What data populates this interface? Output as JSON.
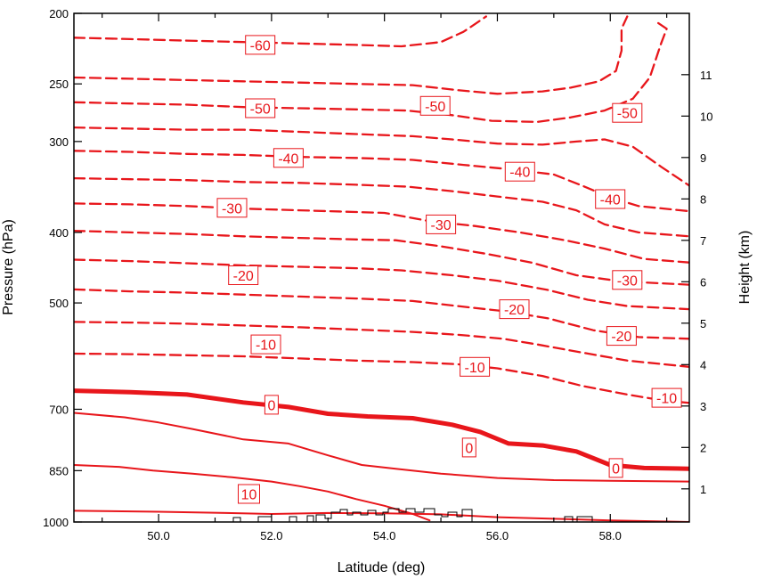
{
  "chart_data": {
    "type": "contour",
    "colors": {
      "contour": "#e8161b",
      "terrain": "#000000",
      "frame": "#000000"
    },
    "x_axis": {
      "label": "Latitude (deg)",
      "range": [
        48.5,
        59.4
      ],
      "ticks": [
        50.0,
        52.0,
        54.0,
        56.0,
        58.0
      ],
      "tick_labels": [
        "50.0",
        "52.0",
        "54.0",
        "56.0",
        "58.0"
      ]
    },
    "y_axis_left": {
      "label": "Pressure (hPa)",
      "scale": "log",
      "range": [
        1000,
        200
      ],
      "ticks": [
        200,
        250,
        300,
        400,
        500,
        700,
        850,
        1000
      ],
      "tick_labels": [
        "200",
        "250",
        "300",
        "400",
        "500",
        "700",
        "850",
        "1000"
      ]
    },
    "y_axis_right": {
      "label": "Height (km)",
      "ticks": [
        1,
        2,
        3,
        4,
        5,
        6,
        7,
        8,
        9,
        10,
        11
      ],
      "tick_labels": [
        "1",
        "2",
        "3",
        "4",
        "5",
        "6",
        "7",
        "8",
        "9",
        "10",
        "11"
      ]
    },
    "contours": [
      {
        "level": 10,
        "style": "solid",
        "points": [
          [
            48.5,
            835
          ],
          [
            49.3,
            840
          ],
          [
            49.9,
            850
          ],
          [
            50.6,
            858
          ],
          [
            51.3,
            868
          ],
          [
            52.0,
            880
          ],
          [
            52.5,
            893
          ],
          [
            53.0,
            908
          ],
          [
            53.5,
            930
          ],
          [
            54.0,
            950
          ],
          [
            54.5,
            975
          ],
          [
            54.8,
            995
          ]
        ]
      },
      {
        "level": 5,
        "style": "solid",
        "points": [
          [
            48.5,
            708
          ],
          [
            49.4,
            718
          ],
          [
            50.0,
            730
          ],
          [
            50.6,
            745
          ],
          [
            51.5,
            770
          ],
          [
            52.3,
            780
          ],
          [
            53.0,
            810
          ],
          [
            53.6,
            835
          ],
          [
            54.2,
            845
          ],
          [
            55.0,
            858
          ],
          [
            56.0,
            870
          ],
          [
            57.0,
            876
          ],
          [
            58.0,
            878
          ],
          [
            59.4,
            880
          ]
        ]
      },
      {
        "level": 3,
        "style": "solid",
        "points": [
          [
            48.5,
            965
          ],
          [
            50.0,
            968
          ],
          [
            51.2,
            972
          ],
          [
            52.0,
            975
          ],
          [
            53.0,
            972
          ],
          [
            54.0,
            973
          ],
          [
            55.0,
            976
          ],
          [
            56.0,
            985
          ],
          [
            57.0,
            990
          ],
          [
            58.0,
            995
          ],
          [
            59.4,
            1000
          ]
        ]
      },
      {
        "level": 0,
        "style": "bold",
        "points": [
          [
            48.5,
            660
          ],
          [
            49.5,
            663
          ],
          [
            50.5,
            668
          ],
          [
            51.5,
            685
          ],
          [
            52.3,
            695
          ],
          [
            53.0,
            710
          ],
          [
            53.7,
            716
          ],
          [
            54.5,
            720
          ],
          [
            55.2,
            735
          ],
          [
            55.7,
            752
          ],
          [
            56.2,
            780
          ],
          [
            56.8,
            785
          ],
          [
            57.4,
            800
          ],
          [
            58.0,
            835
          ],
          [
            58.6,
            843
          ],
          [
            59.4,
            845
          ]
        ]
      },
      {
        "level": -5,
        "style": "dashed",
        "points": [
          [
            48.5,
            587
          ],
          [
            49.5,
            588
          ],
          [
            50.5,
            590
          ],
          [
            51.5,
            592
          ],
          [
            52.5,
            596
          ],
          [
            53.5,
            600
          ],
          [
            54.5,
            603
          ],
          [
            55.3,
            607
          ],
          [
            56.0,
            615
          ],
          [
            56.8,
            630
          ],
          [
            57.5,
            650
          ],
          [
            58.3,
            668
          ],
          [
            58.9,
            680
          ],
          [
            59.4,
            686
          ]
        ]
      },
      {
        "level": -10,
        "style": "dashed",
        "points": [
          [
            48.5,
            531
          ],
          [
            49.5,
            532
          ],
          [
            50.5,
            534
          ],
          [
            51.5,
            537
          ],
          [
            52.5,
            540
          ],
          [
            53.5,
            544
          ],
          [
            54.5,
            548
          ],
          [
            55.3,
            553
          ],
          [
            56.1,
            560
          ],
          [
            56.7,
            570
          ],
          [
            57.5,
            585
          ],
          [
            58.3,
            600
          ],
          [
            59.4,
            612
          ]
        ]
      },
      {
        "level": -15,
        "style": "dashed",
        "points": [
          [
            48.5,
            479
          ],
          [
            49.5,
            482
          ],
          [
            50.5,
            484
          ],
          [
            51.5,
            487
          ],
          [
            52.5,
            490
          ],
          [
            53.5,
            493
          ],
          [
            54.5,
            497
          ],
          [
            55.3,
            505
          ],
          [
            56.1,
            513
          ],
          [
            56.9,
            525
          ],
          [
            57.7,
            545
          ],
          [
            58.5,
            557
          ],
          [
            59.4,
            560
          ]
        ]
      },
      {
        "level": -20,
        "style": "dashed",
        "points": [
          [
            48.5,
            436
          ],
          [
            49.5,
            438
          ],
          [
            50.5,
            441
          ],
          [
            51.5,
            444
          ],
          [
            52.5,
            446
          ],
          [
            53.5,
            448
          ],
          [
            54.3,
            451
          ],
          [
            55.2,
            458
          ],
          [
            56.0,
            466
          ],
          [
            56.9,
            480
          ],
          [
            57.6,
            495
          ],
          [
            58.3,
            505
          ],
          [
            59.4,
            510
          ]
        ]
      },
      {
        "level": -25,
        "style": "dashed",
        "points": [
          [
            48.5,
            398
          ],
          [
            49.5,
            400
          ],
          [
            50.5,
            402
          ],
          [
            51.5,
            405
          ],
          [
            52.5,
            407
          ],
          [
            53.5,
            409
          ],
          [
            54.2,
            410
          ],
          [
            55.0,
            418
          ],
          [
            55.8,
            428
          ],
          [
            56.6,
            440
          ],
          [
            57.4,
            458
          ],
          [
            58.2,
            467
          ],
          [
            59.4,
            472
          ]
        ]
      },
      {
        "level": -30,
        "style": "dashed",
        "points": [
          [
            48.5,
            365
          ],
          [
            49.5,
            366
          ],
          [
            50.5,
            368
          ],
          [
            51.5,
            371
          ],
          [
            52.5,
            373
          ],
          [
            53.5,
            375
          ],
          [
            54.0,
            376
          ],
          [
            54.8,
            386
          ],
          [
            55.6,
            392
          ],
          [
            56.4,
            400
          ],
          [
            57.2,
            410
          ],
          [
            57.9,
            421
          ],
          [
            58.6,
            435
          ],
          [
            59.4,
            440
          ]
        ]
      },
      {
        "level": -35,
        "style": "dashed",
        "points": [
          [
            48.5,
            337
          ],
          [
            49.5,
            338
          ],
          [
            50.5,
            339
          ],
          [
            51.5,
            341
          ],
          [
            52.5,
            342
          ],
          [
            53.5,
            344
          ],
          [
            54.4,
            346
          ],
          [
            55.2,
            351
          ],
          [
            56.0,
            357
          ],
          [
            56.8,
            363
          ],
          [
            57.4,
            373
          ],
          [
            57.9,
            390
          ],
          [
            58.5,
            400
          ],
          [
            59.4,
            405
          ]
        ]
      },
      {
        "level": -40,
        "style": "dashed",
        "points": [
          [
            48.5,
            309
          ],
          [
            49.5,
            310
          ],
          [
            50.5,
            312
          ],
          [
            51.5,
            313
          ],
          [
            52.5,
            315
          ],
          [
            53.5,
            316
          ],
          [
            54.5,
            318
          ],
          [
            55.4,
            323
          ],
          [
            56.3,
            328
          ],
          [
            57.0,
            333
          ],
          [
            57.5,
            345
          ],
          [
            58.0,
            358
          ],
          [
            58.5,
            368
          ],
          [
            59.4,
            374
          ]
        ]
      },
      {
        "level": -45,
        "style": "dashed",
        "points": [
          [
            48.5,
            287
          ],
          [
            49.5,
            288
          ],
          [
            50.5,
            289
          ],
          [
            51.5,
            289
          ],
          [
            52.5,
            291
          ],
          [
            53.5,
            293
          ],
          [
            54.5,
            295
          ],
          [
            55.2,
            298
          ],
          [
            56.0,
            302
          ],
          [
            56.8,
            303
          ],
          [
            57.4,
            300
          ],
          [
            57.9,
            298
          ],
          [
            58.4,
            305
          ],
          [
            58.9,
            325
          ],
          [
            59.4,
            345
          ]
        ]
      },
      {
        "level": -50,
        "style": "dashed",
        "points": [
          [
            48.5,
            265
          ],
          [
            49.5,
            266
          ],
          [
            50.5,
            267
          ],
          [
            51.5,
            269
          ],
          [
            52.5,
            270
          ],
          [
            53.5,
            271
          ],
          [
            54.4,
            272
          ],
          [
            55.2,
            276
          ],
          [
            55.9,
            281
          ],
          [
            56.7,
            282
          ],
          [
            57.3,
            278
          ],
          [
            57.9,
            272
          ],
          [
            58.4,
            262
          ],
          [
            58.7,
            245
          ],
          [
            58.9,
            220
          ],
          [
            59.0,
            210
          ],
          [
            58.8,
            205
          ]
        ]
      },
      {
        "level": -55,
        "style": "dashed",
        "points": [
          [
            48.5,
            245
          ],
          [
            49.5,
            246
          ],
          [
            50.5,
            247
          ],
          [
            51.5,
            248
          ],
          [
            52.5,
            249
          ],
          [
            53.5,
            250
          ],
          [
            54.5,
            251
          ],
          [
            55.3,
            255
          ],
          [
            56.0,
            258
          ],
          [
            56.8,
            256
          ],
          [
            57.3,
            253
          ],
          [
            57.8,
            248
          ],
          [
            58.1,
            240
          ],
          [
            58.2,
            225
          ],
          [
            58.2,
            210
          ],
          [
            58.3,
            202
          ]
        ]
      },
      {
        "level": -60,
        "style": "dashed",
        "points": [
          [
            48.5,
            216
          ],
          [
            49.5,
            217
          ],
          [
            50.5,
            218
          ],
          [
            51.5,
            219
          ],
          [
            52.5,
            220
          ],
          [
            53.5,
            221
          ],
          [
            54.3,
            222
          ],
          [
            55.0,
            219
          ],
          [
            55.4,
            212
          ],
          [
            55.6,
            207
          ],
          [
            55.8,
            202
          ]
        ]
      }
    ],
    "contour_labels": [
      {
        "text": "-60",
        "lat": 51.8,
        "p": 221
      },
      {
        "text": "-50",
        "lat": 51.8,
        "p": 270
      },
      {
        "text": "-50",
        "lat": 54.9,
        "p": 268
      },
      {
        "text": "-50",
        "lat": 58.3,
        "p": 274
      },
      {
        "text": "-40",
        "lat": 52.3,
        "p": 316
      },
      {
        "text": "-40",
        "lat": 56.4,
        "p": 330
      },
      {
        "text": "-40",
        "lat": 58.0,
        "p": 360
      },
      {
        "text": "-30",
        "lat": 51.3,
        "p": 370
      },
      {
        "text": "-30",
        "lat": 55.0,
        "p": 390
      },
      {
        "text": "-30",
        "lat": 58.3,
        "p": 465
      },
      {
        "text": "-20",
        "lat": 51.5,
        "p": 458
      },
      {
        "text": "-20",
        "lat": 56.3,
        "p": 510
      },
      {
        "text": "-20",
        "lat": 58.2,
        "p": 555
      },
      {
        "text": "-10",
        "lat": 51.9,
        "p": 570
      },
      {
        "text": "-10",
        "lat": 55.6,
        "p": 612
      },
      {
        "text": "-10",
        "lat": 59.0,
        "p": 675
      },
      {
        "text": "0",
        "lat": 52.0,
        "p": 690
      },
      {
        "text": "0",
        "lat": 55.5,
        "p": 790
      },
      {
        "text": "0",
        "lat": 58.1,
        "p": 843
      },
      {
        "text": "10",
        "lat": 51.6,
        "p": 915
      }
    ]
  }
}
